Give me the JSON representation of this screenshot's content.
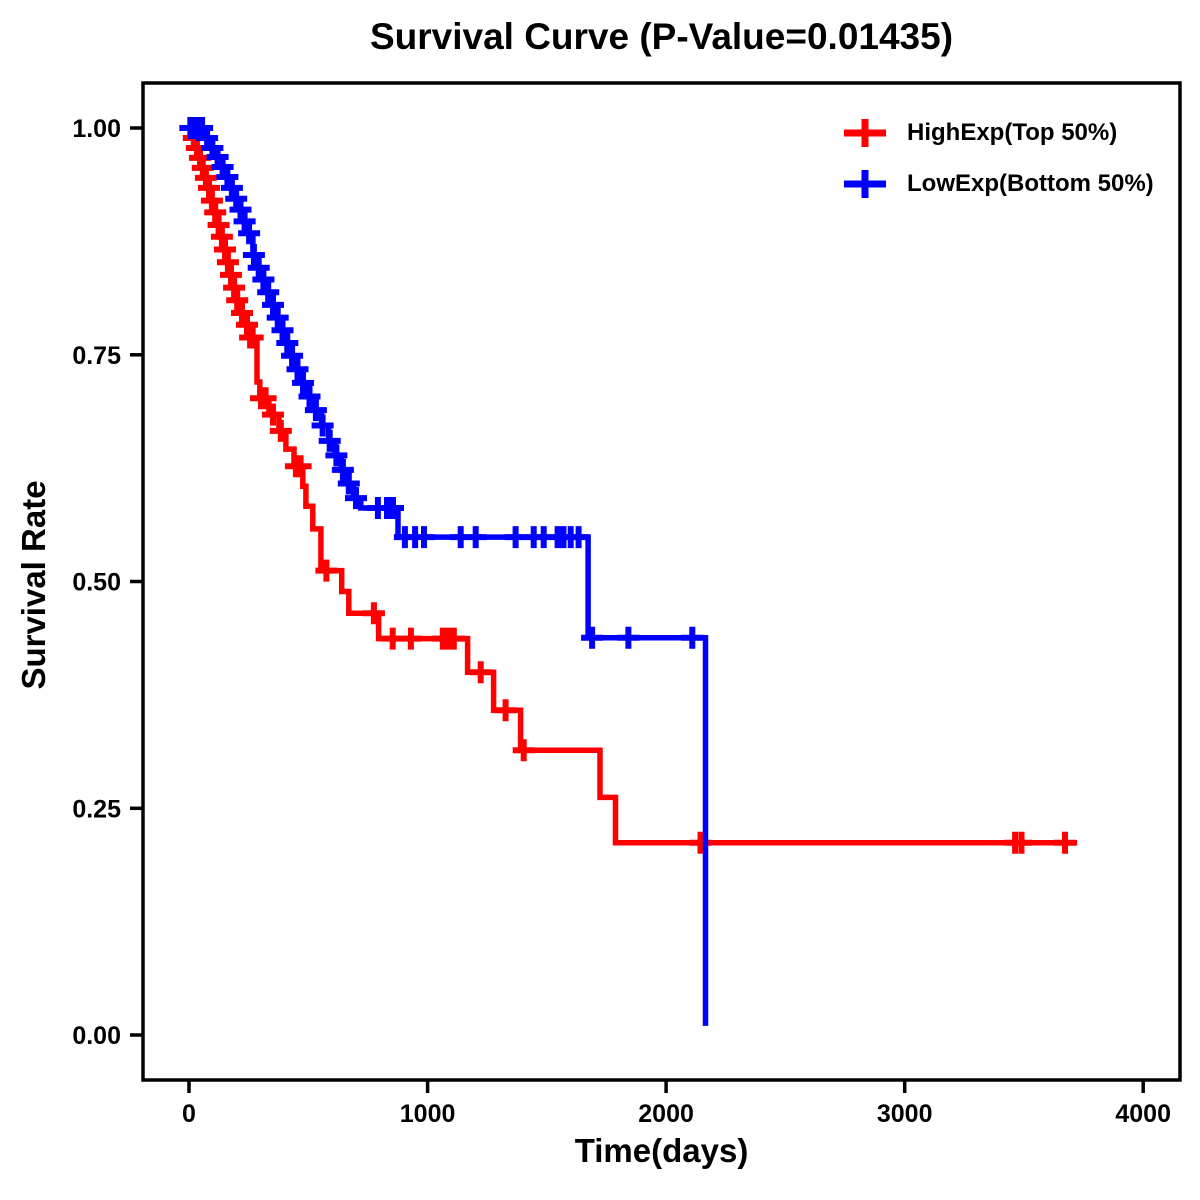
{
  "chart_data": {
    "type": "line",
    "chart_kind": "kaplan_meier_step_survival",
    "title": "Survival Curve (P-Value=0.01435)",
    "xlabel": "Time(days)",
    "ylabel": "Survival Rate",
    "xlim": [
      0,
      4000
    ],
    "ylim": [
      0.0,
      1.0
    ],
    "grid": false,
    "legend_position": "top-right-inside",
    "frame_color": "#000000",
    "xticks": [
      {
        "v": 0,
        "label": "0"
      },
      {
        "v": 1000,
        "label": "1000"
      },
      {
        "v": 2000,
        "label": "2000"
      },
      {
        "v": 3000,
        "label": "3000"
      },
      {
        "v": 4000,
        "label": "4000"
      }
    ],
    "yticks": [
      {
        "v": 0.0,
        "label": "0.00"
      },
      {
        "v": 0.25,
        "label": "0.25"
      },
      {
        "v": 0.5,
        "label": "0.50"
      },
      {
        "v": 0.75,
        "label": "0.75"
      },
      {
        "v": 1.0,
        "label": "1.00"
      }
    ],
    "series": [
      {
        "id": "highexp",
        "name": "HighExp(Top 50%)",
        "color": "#ff0000",
        "end_time": 3723,
        "points": [
          [
            0,
            1.0
          ],
          [
            15,
            0.989
          ],
          [
            30,
            0.978
          ],
          [
            42,
            0.967
          ],
          [
            55,
            0.956
          ],
          [
            67,
            0.945
          ],
          [
            80,
            0.934
          ],
          [
            92,
            0.92
          ],
          [
            105,
            0.907
          ],
          [
            120,
            0.893
          ],
          [
            134,
            0.88
          ],
          [
            147,
            0.866
          ],
          [
            159,
            0.852
          ],
          [
            172,
            0.838
          ],
          [
            184,
            0.824
          ],
          [
            197,
            0.81
          ],
          [
            218,
            0.796
          ],
          [
            239,
            0.783
          ],
          [
            251,
            0.769
          ],
          [
            285,
            0.72
          ],
          [
            297,
            0.702
          ],
          [
            335,
            0.684
          ],
          [
            377,
            0.666
          ],
          [
            406,
            0.646
          ],
          [
            440,
            0.627
          ],
          [
            477,
            0.605
          ],
          [
            490,
            0.583
          ],
          [
            519,
            0.558
          ],
          [
            553,
            0.512
          ],
          [
            640,
            0.489
          ],
          [
            670,
            0.465
          ],
          [
            795,
            0.437
          ],
          [
            1168,
            0.4
          ],
          [
            1277,
            0.358
          ],
          [
            1390,
            0.314
          ],
          [
            1723,
            0.262
          ],
          [
            1788,
            0.212
          ]
        ],
        "censors": [
          [
            5,
            1.0
          ],
          [
            20,
            0.989
          ],
          [
            33,
            0.978
          ],
          [
            46,
            0.967
          ],
          [
            58,
            0.956
          ],
          [
            71,
            0.945
          ],
          [
            84,
            0.934
          ],
          [
            96,
            0.92
          ],
          [
            110,
            0.907
          ],
          [
            124,
            0.893
          ],
          [
            138,
            0.88
          ],
          [
            151,
            0.866
          ],
          [
            163,
            0.852
          ],
          [
            176,
            0.838
          ],
          [
            189,
            0.824
          ],
          [
            202,
            0.81
          ],
          [
            222,
            0.796
          ],
          [
            243,
            0.783
          ],
          [
            256,
            0.769
          ],
          [
            267,
            0.769
          ],
          [
            302,
            0.702
          ],
          [
            321,
            0.702
          ],
          [
            352,
            0.684
          ],
          [
            385,
            0.666
          ],
          [
            448,
            0.627
          ],
          [
            468,
            0.627
          ],
          [
            576,
            0.512
          ],
          [
            775,
            0.465
          ],
          [
            854,
            0.437
          ],
          [
            930,
            0.437
          ],
          [
            1064,
            0.437
          ],
          [
            1089,
            0.437
          ],
          [
            1110,
            0.437
          ],
          [
            1223,
            0.4
          ],
          [
            1327,
            0.358
          ],
          [
            1403,
            0.314
          ],
          [
            2144,
            0.212
          ],
          [
            3463,
            0.212
          ],
          [
            3490,
            0.212
          ],
          [
            3672,
            0.212
          ]
        ]
      },
      {
        "id": "lowexp",
        "name": "LowExp(Bottom 50%)",
        "color": "#0000ff",
        "end_time": 2165,
        "points": [
          [
            0,
            1.0
          ],
          [
            72,
            0.989
          ],
          [
            95,
            0.978
          ],
          [
            117,
            0.968
          ],
          [
            138,
            0.957
          ],
          [
            158,
            0.946
          ],
          [
            177,
            0.934
          ],
          [
            195,
            0.922
          ],
          [
            213,
            0.91
          ],
          [
            230,
            0.897
          ],
          [
            247,
            0.884
          ],
          [
            268,
            0.86
          ],
          [
            288,
            0.846
          ],
          [
            308,
            0.833
          ],
          [
            328,
            0.819
          ],
          [
            348,
            0.805
          ],
          [
            368,
            0.791
          ],
          [
            388,
            0.777
          ],
          [
            408,
            0.763
          ],
          [
            428,
            0.749
          ],
          [
            450,
            0.734
          ],
          [
            472,
            0.719
          ],
          [
            500,
            0.704
          ],
          [
            528,
            0.689
          ],
          [
            556,
            0.672
          ],
          [
            585,
            0.655
          ],
          [
            612,
            0.639
          ],
          [
            638,
            0.623
          ],
          [
            665,
            0.608
          ],
          [
            690,
            0.592
          ],
          [
            720,
            0.581
          ],
          [
            876,
            0.549
          ],
          [
            1673,
            0.438
          ],
          [
            2165,
            0.01
          ]
        ],
        "censors": [
          [
            8,
            1.0
          ],
          [
            30,
            1.0
          ],
          [
            55,
            1.0
          ],
          [
            76,
            0.989
          ],
          [
            98,
            0.978
          ],
          [
            120,
            0.968
          ],
          [
            141,
            0.957
          ],
          [
            161,
            0.946
          ],
          [
            180,
            0.934
          ],
          [
            198,
            0.922
          ],
          [
            216,
            0.91
          ],
          [
            233,
            0.897
          ],
          [
            252,
            0.884
          ],
          [
            272,
            0.86
          ],
          [
            292,
            0.846
          ],
          [
            312,
            0.833
          ],
          [
            332,
            0.819
          ],
          [
            352,
            0.805
          ],
          [
            372,
            0.791
          ],
          [
            392,
            0.777
          ],
          [
            412,
            0.763
          ],
          [
            432,
            0.749
          ],
          [
            455,
            0.734
          ],
          [
            478,
            0.719
          ],
          [
            505,
            0.704
          ],
          [
            532,
            0.689
          ],
          [
            560,
            0.672
          ],
          [
            590,
            0.655
          ],
          [
            618,
            0.639
          ],
          [
            645,
            0.623
          ],
          [
            670,
            0.608
          ],
          [
            700,
            0.592
          ],
          [
            792,
            0.581
          ],
          [
            830,
            0.581
          ],
          [
            855,
            0.581
          ],
          [
            905,
            0.549
          ],
          [
            948,
            0.549
          ],
          [
            985,
            0.549
          ],
          [
            1139,
            0.549
          ],
          [
            1202,
            0.549
          ],
          [
            1369,
            0.549
          ],
          [
            1445,
            0.549
          ],
          [
            1487,
            0.549
          ],
          [
            1545,
            0.549
          ],
          [
            1570,
            0.549
          ],
          [
            1600,
            0.549
          ],
          [
            1633,
            0.549
          ],
          [
            1690,
            0.438
          ],
          [
            1842,
            0.438
          ],
          [
            2110,
            0.438
          ]
        ]
      }
    ]
  }
}
